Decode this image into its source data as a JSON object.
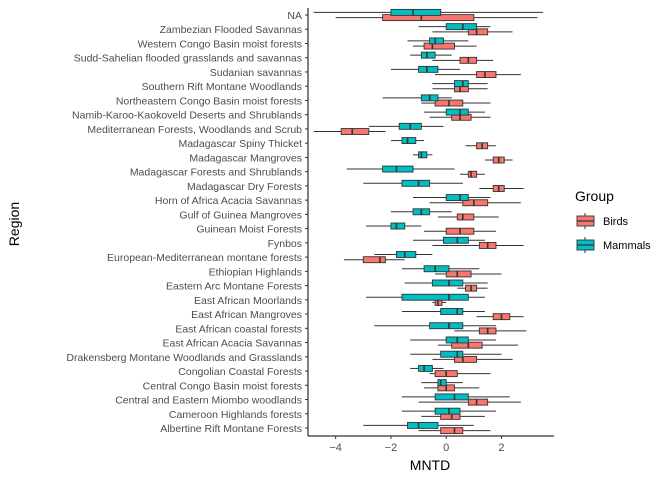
{
  "chart_data": {
    "type": "boxplot",
    "title": "",
    "xlabel": "MNTD",
    "ylabel": "Region",
    "xlim": [
      -5.0,
      3.9
    ],
    "x_ticks": [
      -4,
      -2,
      0,
      2
    ],
    "grid": false,
    "legend": {
      "title": "Group",
      "position": "right",
      "entries": [
        {
          "name": "Birds",
          "color": "#F8766D"
        },
        {
          "name": "Mammals",
          "color": "#00BFC4"
        }
      ]
    },
    "colors": {
      "Birds": "#F8766D",
      "Mammals": "#00BFC4"
    },
    "categories": [
      "Albertine Rift Montane Forests",
      "Cameroon Highlands forests",
      "Central and Eastern Miombo woodlands",
      "Central Congo Basin moist forests",
      "Congolian Coastal Forests",
      "Drakensberg Montane Woodlands and Grasslands",
      "East African Acacia Savannas",
      "East African coastal forests",
      "East African Mangroves",
      "East African Moorlands",
      "Eastern Arc Montane Forests",
      "Ethiopian Highlands",
      "European-Mediterranean montane forests",
      "Fynbos",
      "Guinean Moist Forests",
      "Gulf of Guinea Mangroves",
      "Horn of Africa Acacia Savannas",
      "Madagascar Dry Forests",
      "Madagascar Forests and Shrublands",
      "Madagascar Mangroves",
      "Madagascar Spiny Thicket",
      "Mediterranean Forests, Woodlands and Scrub",
      "Namib-Karoo-Kaokoveld Deserts and Shrublands",
      "Northeastern Congo Basin moist forests",
      "Southern Rift Montane Woodlands",
      "Sudanian savannas",
      "Sudd-Sahelian flooded grasslands and savannas",
      "Western Congo Basin moist forests",
      "Zambezian Flooded Savannas",
      "NA"
    ],
    "series": [
      {
        "name": "Birds",
        "boxes": [
          {
            "wmin": -1.0,
            "q1": -0.2,
            "median": 0.3,
            "q3": 0.6,
            "wmax": 1.6
          },
          {
            "wmin": -0.9,
            "q1": -0.2,
            "median": 0.2,
            "q3": 0.5,
            "wmax": 1.4
          },
          {
            "wmin": -1.0,
            "q1": 0.8,
            "median": 1.1,
            "q3": 1.5,
            "wmax": 2.7
          },
          {
            "wmin": -0.8,
            "q1": -0.3,
            "median": 0.0,
            "q3": 0.3,
            "wmax": 1.2
          },
          {
            "wmin": -0.6,
            "q1": -0.4,
            "median": 0.0,
            "q3": 0.4,
            "wmax": 1.6
          },
          {
            "wmin": -0.5,
            "q1": 0.3,
            "median": 0.6,
            "q3": 1.1,
            "wmax": 2.4
          },
          {
            "wmin": -0.3,
            "q1": 0.2,
            "median": 0.8,
            "q3": 1.3,
            "wmax": 2.6
          },
          {
            "wmin": 0.3,
            "q1": 1.2,
            "median": 1.5,
            "q3": 1.8,
            "wmax": 2.9
          },
          {
            "wmin": 1.1,
            "q1": 1.7,
            "median": 2.0,
            "q3": 2.3,
            "wmax": 2.8
          },
          {
            "wmin": -0.5,
            "q1": -0.4,
            "median": -0.3,
            "q3": -0.15,
            "wmax": 0.0
          },
          {
            "wmin": 0.4,
            "q1": 0.7,
            "median": 0.9,
            "q3": 1.1,
            "wmax": 1.5
          },
          {
            "wmin": -0.4,
            "q1": 0.0,
            "median": 0.4,
            "q3": 0.9,
            "wmax": 2.0
          },
          {
            "wmin": -3.7,
            "q1": -3.0,
            "median": -2.4,
            "q3": -2.2,
            "wmax": -1.5
          },
          {
            "wmin": -0.5,
            "q1": 1.2,
            "median": 1.5,
            "q3": 1.8,
            "wmax": 2.8
          },
          {
            "wmin": -0.8,
            "q1": 0.0,
            "median": 0.5,
            "q3": 1.0,
            "wmax": 1.8
          },
          {
            "wmin": -0.3,
            "q1": 0.4,
            "median": 0.6,
            "q3": 1.0,
            "wmax": 1.9
          },
          {
            "wmin": -0.6,
            "q1": 0.6,
            "median": 1.0,
            "q3": 1.5,
            "wmax": 2.7
          },
          {
            "wmin": 1.2,
            "q1": 1.7,
            "median": 1.9,
            "q3": 2.1,
            "wmax": 2.8
          },
          {
            "wmin": 0.5,
            "q1": 0.8,
            "median": 0.9,
            "q3": 1.1,
            "wmax": 1.4
          },
          {
            "wmin": 1.4,
            "q1": 1.7,
            "median": 1.9,
            "q3": 2.1,
            "wmax": 2.4
          },
          {
            "wmin": 0.7,
            "q1": 1.1,
            "median": 1.3,
            "q3": 1.5,
            "wmax": 1.8
          },
          {
            "wmin": -4.8,
            "q1": -3.8,
            "median": -3.4,
            "q3": -2.8,
            "wmax": -2.2
          },
          {
            "wmin": -0.6,
            "q1": 0.2,
            "median": 0.5,
            "q3": 0.9,
            "wmax": 1.6
          },
          {
            "wmin": -0.9,
            "q1": -0.4,
            "median": 0.1,
            "q3": 0.6,
            "wmax": 1.6
          },
          {
            "wmin": -0.5,
            "q1": 0.3,
            "median": 0.5,
            "q3": 0.8,
            "wmax": 1.5
          },
          {
            "wmin": -0.4,
            "q1": 1.1,
            "median": 1.4,
            "q3": 1.8,
            "wmax": 2.7
          },
          {
            "wmin": -0.5,
            "q1": 0.5,
            "median": 0.8,
            "q3": 1.1,
            "wmax": 1.7
          },
          {
            "wmin": -1.2,
            "q1": -0.8,
            "median": -0.5,
            "q3": 0.3,
            "wmax": 1.1
          },
          {
            "wmin": -0.5,
            "q1": 0.8,
            "median": 1.1,
            "q3": 1.5,
            "wmax": 2.4
          },
          {
            "wmin": -4.0,
            "q1": -2.3,
            "median": -0.9,
            "q3": 1.0,
            "wmax": 3.3
          }
        ]
      },
      {
        "name": "Mammals",
        "boxes": [
          {
            "wmin": -3.0,
            "q1": -1.4,
            "median": -1.0,
            "q3": -0.3,
            "wmax": 1.0
          },
          {
            "wmin": -1.6,
            "q1": -0.4,
            "median": 0.1,
            "q3": 0.5,
            "wmax": 1.8
          },
          {
            "wmin": -1.6,
            "q1": -0.4,
            "median": 0.3,
            "q3": 0.8,
            "wmax": 2.3
          },
          {
            "wmin": -0.9,
            "q1": -0.3,
            "median": -0.2,
            "q3": 0.0,
            "wmax": 0.6
          },
          {
            "wmin": -1.3,
            "q1": -1.0,
            "median": -0.8,
            "q3": -0.5,
            "wmax": -0.1
          },
          {
            "wmin": -1.3,
            "q1": -0.2,
            "median": 0.4,
            "q3": 0.6,
            "wmax": 2.0
          },
          {
            "wmin": -1.3,
            "q1": 0.0,
            "median": 0.4,
            "q3": 0.8,
            "wmax": 1.8
          },
          {
            "wmin": -2.6,
            "q1": -0.6,
            "median": 0.1,
            "q3": 0.6,
            "wmax": 1.8
          },
          {
            "wmin": -1.6,
            "q1": -0.2,
            "median": 0.4,
            "q3": 0.6,
            "wmax": 1.4
          },
          {
            "wmin": -2.9,
            "q1": -1.6,
            "median": 0.1,
            "q3": 0.8,
            "wmax": 1.4
          },
          {
            "wmin": -1.5,
            "q1": -0.5,
            "median": 0.1,
            "q3": 0.6,
            "wmax": 1.5
          },
          {
            "wmin": -1.6,
            "q1": -0.8,
            "median": -0.4,
            "q3": 0.1,
            "wmax": 1.2
          },
          {
            "wmin": -2.6,
            "q1": -1.8,
            "median": -1.5,
            "q3": -1.1,
            "wmax": -0.5
          },
          {
            "wmin": -1.2,
            "q1": -0.1,
            "median": 0.4,
            "q3": 0.8,
            "wmax": 1.4
          },
          {
            "wmin": -2.9,
            "q1": -2.0,
            "median": -1.8,
            "q3": -1.5,
            "wmax": -0.9
          },
          {
            "wmin": -2.0,
            "q1": -1.2,
            "median": -0.9,
            "q3": -0.6,
            "wmax": 0.2
          },
          {
            "wmin": -1.2,
            "q1": 0.0,
            "median": 0.5,
            "q3": 0.8,
            "wmax": 1.6
          },
          {
            "wmin": -3.0,
            "q1": -1.6,
            "median": -1.0,
            "q3": -0.6,
            "wmax": 0.6
          },
          {
            "wmin": -3.6,
            "q1": -2.3,
            "median": -1.8,
            "q3": -1.2,
            "wmax": 0.3
          },
          {
            "wmin": -1.2,
            "q1": -1.0,
            "median": -0.9,
            "q3": -0.7,
            "wmax": -0.5
          },
          {
            "wmin": -2.0,
            "q1": -1.6,
            "median": -1.4,
            "q3": -1.1,
            "wmax": -0.8
          },
          {
            "wmin": -2.8,
            "q1": -1.7,
            "median": -1.3,
            "q3": -0.9,
            "wmax": -0.1
          },
          {
            "wmin": -0.8,
            "q1": 0.0,
            "median": 0.5,
            "q3": 0.8,
            "wmax": 1.4
          },
          {
            "wmin": -2.3,
            "q1": -0.9,
            "median": -0.6,
            "q3": -0.3,
            "wmax": 0.2
          },
          {
            "wmin": -0.5,
            "q1": 0.3,
            "median": 0.6,
            "q3": 0.8,
            "wmax": 1.5
          },
          {
            "wmin": -2.0,
            "q1": -1.0,
            "median": -0.7,
            "q3": -0.3,
            "wmax": 0.5
          },
          {
            "wmin": -1.3,
            "q1": -0.9,
            "median": -0.7,
            "q3": -0.4,
            "wmax": 0.2
          },
          {
            "wmin": -1.4,
            "q1": -0.6,
            "median": -0.4,
            "q3": -0.1,
            "wmax": 0.8
          },
          {
            "wmin": -1.0,
            "q1": 0.0,
            "median": 0.6,
            "q3": 1.1,
            "wmax": 1.6
          },
          {
            "wmin": -4.8,
            "q1": -2.0,
            "median": -1.2,
            "q3": -0.2,
            "wmax": 3.5
          }
        ]
      }
    ]
  }
}
